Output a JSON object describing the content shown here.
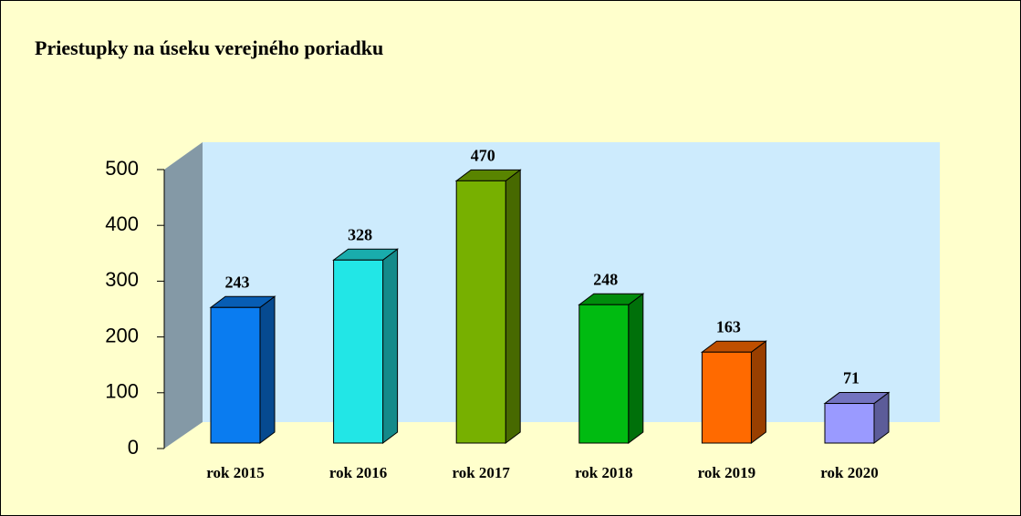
{
  "chart_data": {
    "type": "bar3d",
    "title": "Priestupky na úseku verejného poriadku",
    "categories": [
      "rok 2015",
      "rok 2016",
      "rok 2017",
      "rok 2018",
      "rok 2019",
      "rok 2020"
    ],
    "values": [
      243,
      328,
      470,
      248,
      163,
      71
    ],
    "colors": [
      "#0a7cf0",
      "#22e6e6",
      "#77b000",
      "#00bb11",
      "#ff6a00",
      "#9a9aff"
    ],
    "ylim": [
      0,
      500
    ],
    "yticks": [
      0,
      100,
      200,
      300,
      400,
      500
    ]
  }
}
